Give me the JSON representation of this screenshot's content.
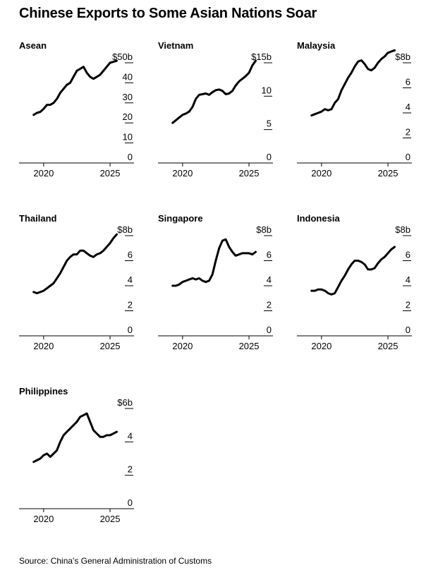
{
  "page": {
    "title": "Chinese Exports to Some Asian Nations Soar",
    "source": "Source: China's General Administration of Customs"
  },
  "chart_data": [
    {
      "type": "line",
      "title": "Asean",
      "x": [
        2019.25,
        2019.5,
        2019.75,
        2020.0,
        2020.25,
        2020.5,
        2020.75,
        2021.0,
        2021.25,
        2021.5,
        2021.75,
        2022.0,
        2022.25,
        2022.5,
        2022.75,
        2023.0,
        2023.25,
        2023.5,
        2023.75,
        2024.0,
        2024.25,
        2024.5,
        2024.75,
        2025.0,
        2025.25,
        2025.5
      ],
      "values": [
        24,
        25,
        25.5,
        27,
        29,
        29,
        30,
        32,
        35,
        37,
        39,
        40,
        43,
        46,
        47,
        48,
        45,
        43,
        42,
        43,
        44,
        46,
        48,
        50,
        50.5,
        51
      ],
      "ytick_labels": [
        "$50b",
        "40",
        "30",
        "20",
        "10",
        "0"
      ],
      "ytick_values": [
        50,
        40,
        30,
        20,
        10,
        0
      ],
      "xtick_labels": [
        "2020",
        "2025"
      ],
      "xtick_values": [
        2020,
        2025
      ],
      "ylim": [
        0,
        50
      ]
    },
    {
      "type": "line",
      "title": "Vietnam",
      "x": [
        2019.25,
        2019.5,
        2019.75,
        2020.0,
        2020.25,
        2020.5,
        2020.75,
        2021.0,
        2021.25,
        2021.5,
        2021.75,
        2022.0,
        2022.25,
        2022.5,
        2022.75,
        2023.0,
        2023.25,
        2023.5,
        2023.75,
        2024.0,
        2024.25,
        2024.5,
        2024.75,
        2025.0,
        2025.25,
        2025.5
      ],
      "values": [
        6,
        6.4,
        6.8,
        7.2,
        7.4,
        7.7,
        8.4,
        9.6,
        10.2,
        10.3,
        10.4,
        10.2,
        10.6,
        10.9,
        11.0,
        10.8,
        10.3,
        10.4,
        10.8,
        11.6,
        12.2,
        12.6,
        13.0,
        13.5,
        14.6,
        15.3
      ],
      "ytick_labels": [
        "$15b",
        "10",
        "5",
        "0"
      ],
      "ytick_values": [
        15,
        10,
        5,
        0
      ],
      "xtick_labels": [
        "2020",
        "2025"
      ],
      "xtick_values": [
        2020,
        2025
      ],
      "ylim": [
        0,
        15
      ]
    },
    {
      "type": "line",
      "title": "Malaysia",
      "x": [
        2019.25,
        2019.5,
        2019.75,
        2020.0,
        2020.25,
        2020.5,
        2020.75,
        2021.0,
        2021.25,
        2021.5,
        2021.75,
        2022.0,
        2022.25,
        2022.5,
        2022.75,
        2023.0,
        2023.25,
        2023.5,
        2023.75,
        2024.0,
        2024.25,
        2024.5,
        2024.75,
        2025.0,
        2025.25,
        2025.5
      ],
      "values": [
        3.8,
        3.9,
        4.0,
        4.1,
        4.3,
        4.2,
        4.3,
        4.8,
        5.1,
        5.8,
        6.3,
        6.8,
        7.2,
        7.7,
        8.1,
        8.2,
        7.9,
        7.5,
        7.4,
        7.6,
        8.0,
        8.3,
        8.5,
        8.8,
        8.9,
        9.0
      ],
      "ytick_labels": [
        "$8b",
        "6",
        "4",
        "2",
        "0"
      ],
      "ytick_values": [
        8,
        6,
        4,
        2,
        0
      ],
      "xtick_labels": [
        "2020",
        "2025"
      ],
      "xtick_values": [
        2020,
        2025
      ],
      "ylim": [
        0,
        8
      ]
    },
    {
      "type": "line",
      "title": "Thailand",
      "x": [
        2019.25,
        2019.5,
        2019.75,
        2020.0,
        2020.25,
        2020.5,
        2020.75,
        2021.0,
        2021.25,
        2021.5,
        2021.75,
        2022.0,
        2022.25,
        2022.5,
        2022.75,
        2023.0,
        2023.25,
        2023.5,
        2023.75,
        2024.0,
        2024.25,
        2024.5,
        2024.75,
        2025.0,
        2025.25,
        2025.5
      ],
      "values": [
        3.5,
        3.4,
        3.5,
        3.6,
        3.8,
        4.0,
        4.2,
        4.6,
        5.0,
        5.5,
        6.0,
        6.3,
        6.5,
        6.5,
        6.8,
        6.8,
        6.6,
        6.4,
        6.3,
        6.5,
        6.6,
        6.8,
        7.1,
        7.4,
        7.8,
        8.1
      ],
      "ytick_labels": [
        "$8b",
        "6",
        "4",
        "2",
        "0"
      ],
      "ytick_values": [
        8,
        6,
        4,
        2,
        0
      ],
      "xtick_labels": [
        "2020",
        "2025"
      ],
      "xtick_values": [
        2020,
        2025
      ],
      "ylim": [
        0,
        8
      ]
    },
    {
      "type": "line",
      "title": "Singapore",
      "x": [
        2019.25,
        2019.5,
        2019.75,
        2020.0,
        2020.25,
        2020.5,
        2020.75,
        2021.0,
        2021.25,
        2021.5,
        2021.75,
        2022.0,
        2022.25,
        2022.5,
        2022.75,
        2023.0,
        2023.25,
        2023.5,
        2023.75,
        2024.0,
        2024.25,
        2024.5,
        2024.75,
        2025.0,
        2025.25,
        2025.5
      ],
      "values": [
        4.0,
        4.0,
        4.1,
        4.3,
        4.4,
        4.5,
        4.6,
        4.5,
        4.6,
        4.4,
        4.3,
        4.4,
        4.9,
        6.0,
        7.0,
        7.6,
        7.7,
        7.1,
        6.7,
        6.4,
        6.5,
        6.6,
        6.6,
        6.6,
        6.5,
        6.7
      ],
      "ytick_labels": [
        "$8b",
        "6",
        "4",
        "2",
        "0"
      ],
      "ytick_values": [
        8,
        6,
        4,
        2,
        0
      ],
      "xtick_labels": [
        "2020",
        "2025"
      ],
      "xtick_values": [
        2020,
        2025
      ],
      "ylim": [
        0,
        8
      ]
    },
    {
      "type": "line",
      "title": "Indonesia",
      "x": [
        2019.25,
        2019.5,
        2019.75,
        2020.0,
        2020.25,
        2020.5,
        2020.75,
        2021.0,
        2021.25,
        2021.5,
        2021.75,
        2022.0,
        2022.25,
        2022.5,
        2022.75,
        2023.0,
        2023.25,
        2023.5,
        2023.75,
        2024.0,
        2024.25,
        2024.5,
        2024.75,
        2025.0,
        2025.25,
        2025.5
      ],
      "values": [
        3.6,
        3.6,
        3.7,
        3.7,
        3.6,
        3.4,
        3.3,
        3.4,
        3.9,
        4.4,
        4.8,
        5.3,
        5.7,
        6.0,
        6.0,
        5.9,
        5.7,
        5.3,
        5.3,
        5.4,
        5.8,
        6.1,
        6.3,
        6.6,
        6.9,
        7.1
      ],
      "ytick_labels": [
        "$8b",
        "6",
        "4",
        "2",
        "0"
      ],
      "ytick_values": [
        8,
        6,
        4,
        2,
        0
      ],
      "xtick_labels": [
        "2020",
        "2025"
      ],
      "xtick_values": [
        2020,
        2025
      ],
      "ylim": [
        0,
        8
      ]
    },
    {
      "type": "line",
      "title": "Philippines",
      "x": [
        2019.25,
        2019.5,
        2019.75,
        2020.0,
        2020.25,
        2020.5,
        2020.75,
        2021.0,
        2021.25,
        2021.5,
        2021.75,
        2022.0,
        2022.25,
        2022.5,
        2022.75,
        2023.0,
        2023.25,
        2023.5,
        2023.75,
        2024.0,
        2024.25,
        2024.5,
        2024.75,
        2025.0,
        2025.25,
        2025.5
      ],
      "values": [
        2.8,
        2.9,
        3.0,
        3.2,
        3.3,
        3.1,
        3.3,
        3.5,
        4.0,
        4.4,
        4.6,
        4.8,
        5.0,
        5.2,
        5.5,
        5.6,
        5.7,
        5.2,
        4.7,
        4.5,
        4.3,
        4.3,
        4.4,
        4.4,
        4.5,
        4.6
      ],
      "ytick_labels": [
        "$6b",
        "4",
        "2",
        "0"
      ],
      "ytick_values": [
        6,
        4,
        2,
        0
      ],
      "xtick_labels": [
        "2020",
        "2025"
      ],
      "xtick_values": [
        2020,
        2025
      ],
      "ylim": [
        0,
        6
      ]
    }
  ]
}
